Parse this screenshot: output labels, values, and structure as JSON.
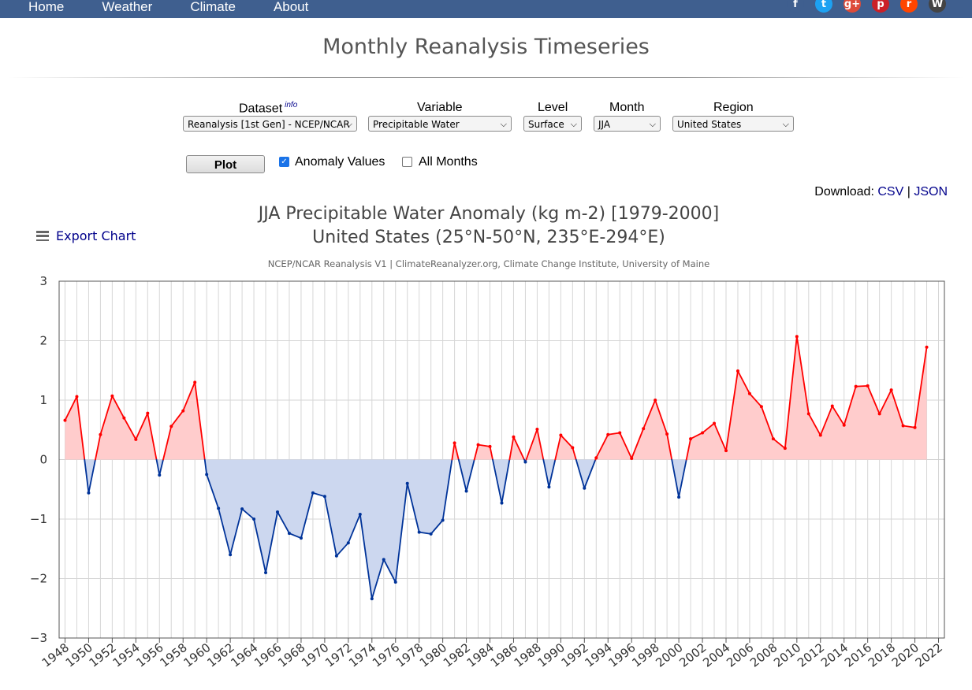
{
  "nav": {
    "links": [
      "Home",
      "Weather",
      "Climate",
      "About"
    ],
    "social_icons": [
      {
        "name": "facebook-icon",
        "glyph": "f",
        "color": "#3f5f8f"
      },
      {
        "name": "twitter-icon",
        "glyph": "t",
        "color": "#1da1f2"
      },
      {
        "name": "google-plus-icon",
        "glyph": "g+",
        "color": "#dd4b39"
      },
      {
        "name": "pinterest-icon",
        "glyph": "p",
        "color": "#cb2027"
      },
      {
        "name": "reddit-icon",
        "glyph": "r",
        "color": "#ff4500"
      },
      {
        "name": "wordpress-icon",
        "glyph": "W",
        "color": "#444444"
      }
    ]
  },
  "page_title": "Monthly Reanalysis Timeseries",
  "controls": {
    "dataset": {
      "label": "Dataset",
      "info": "info",
      "value": "Reanalysis [1st Gen] - NCEP/NCAR"
    },
    "variable": {
      "label": "Variable",
      "value": "Precipitable Water"
    },
    "level": {
      "label": "Level",
      "value": "Surface"
    },
    "month": {
      "label": "Month",
      "value": "JJA"
    },
    "region": {
      "label": "Region",
      "value": "United States"
    },
    "plot_label": "Plot",
    "anomaly_label": "Anomaly Values",
    "anomaly_checked": true,
    "all_months_label": "All Months",
    "all_months_checked": false
  },
  "download": {
    "label": "Download:",
    "csv": "CSV",
    "sep": "|",
    "json": "JSON"
  },
  "export_label": "Export Chart",
  "colors": {
    "positive_line": "#ff0000",
    "positive_fill": "#ffcccc",
    "negative_line": "#003399",
    "negative_fill": "#ccd7ef"
  },
  "chart_data": {
    "type": "area",
    "title": "JJA Precipitable Water Anomaly (kg m-2) [1979-2000]",
    "subtitle_line": "United States (25°N-50°N, 235°E-294°E)",
    "credit": "NCEP/NCAR Reanalysis V1 | ClimateReanalyzer.org, Climate Change Institute, University of Maine",
    "xlim": [
      1947.5,
      2022.5
    ],
    "ylim": [
      -3,
      3
    ],
    "y_ticks": [
      "3",
      "2",
      "1",
      "0",
      "−1",
      "−2",
      "−3"
    ],
    "x_ticks": [
      1948,
      1950,
      1952,
      1954,
      1956,
      1958,
      1960,
      1962,
      1964,
      1966,
      1968,
      1970,
      1972,
      1974,
      1976,
      1978,
      1980,
      1982,
      1984,
      1986,
      1988,
      1990,
      1992,
      1994,
      1996,
      1998,
      2000,
      2002,
      2004,
      2006,
      2008,
      2010,
      2012,
      2014,
      2016,
      2018,
      2020,
      2022
    ],
    "grid": true,
    "x": [
      1948,
      1949,
      1950,
      1951,
      1952,
      1953,
      1954,
      1955,
      1956,
      1957,
      1958,
      1959,
      1960,
      1961,
      1962,
      1963,
      1964,
      1965,
      1966,
      1967,
      1968,
      1969,
      1970,
      1971,
      1972,
      1973,
      1974,
      1975,
      1976,
      1977,
      1978,
      1979,
      1980,
      1981,
      1982,
      1983,
      1984,
      1985,
      1986,
      1987,
      1988,
      1989,
      1990,
      1991,
      1992,
      1993,
      1994,
      1995,
      1996,
      1997,
      1998,
      1999,
      2000,
      2001,
      2002,
      2003,
      2004,
      2005,
      2006,
      2007,
      2008,
      2009,
      2010,
      2011,
      2012,
      2013,
      2014,
      2015,
      2016,
      2017,
      2018,
      2019,
      2020,
      2021
    ],
    "values": [
      0.66,
      1.06,
      -0.56,
      0.42,
      1.07,
      0.7,
      0.34,
      0.78,
      -0.26,
      0.56,
      0.82,
      1.3,
      -0.25,
      -0.82,
      -1.6,
      -0.83,
      -1.0,
      -1.9,
      -0.88,
      -1.24,
      -1.32,
      -0.56,
      -0.62,
      -1.62,
      -1.4,
      -0.92,
      -2.34,
      -1.68,
      -2.06,
      -0.4,
      -1.22,
      -1.25,
      -1.02,
      0.28,
      -0.53,
      0.25,
      0.22,
      -0.73,
      0.38,
      -0.04,
      0.51,
      -0.46,
      0.41,
      0.2,
      -0.48,
      0.03,
      0.42,
      0.45,
      0.02,
      0.52,
      1.0,
      0.43,
      -0.63,
      0.35,
      0.45,
      0.61,
      0.15,
      1.49,
      1.11,
      0.89,
      0.35,
      0.19,
      2.07,
      0.77,
      0.41,
      0.9,
      0.58,
      1.23,
      1.24,
      0.77,
      1.17,
      0.57,
      0.54,
      1.89
    ]
  }
}
